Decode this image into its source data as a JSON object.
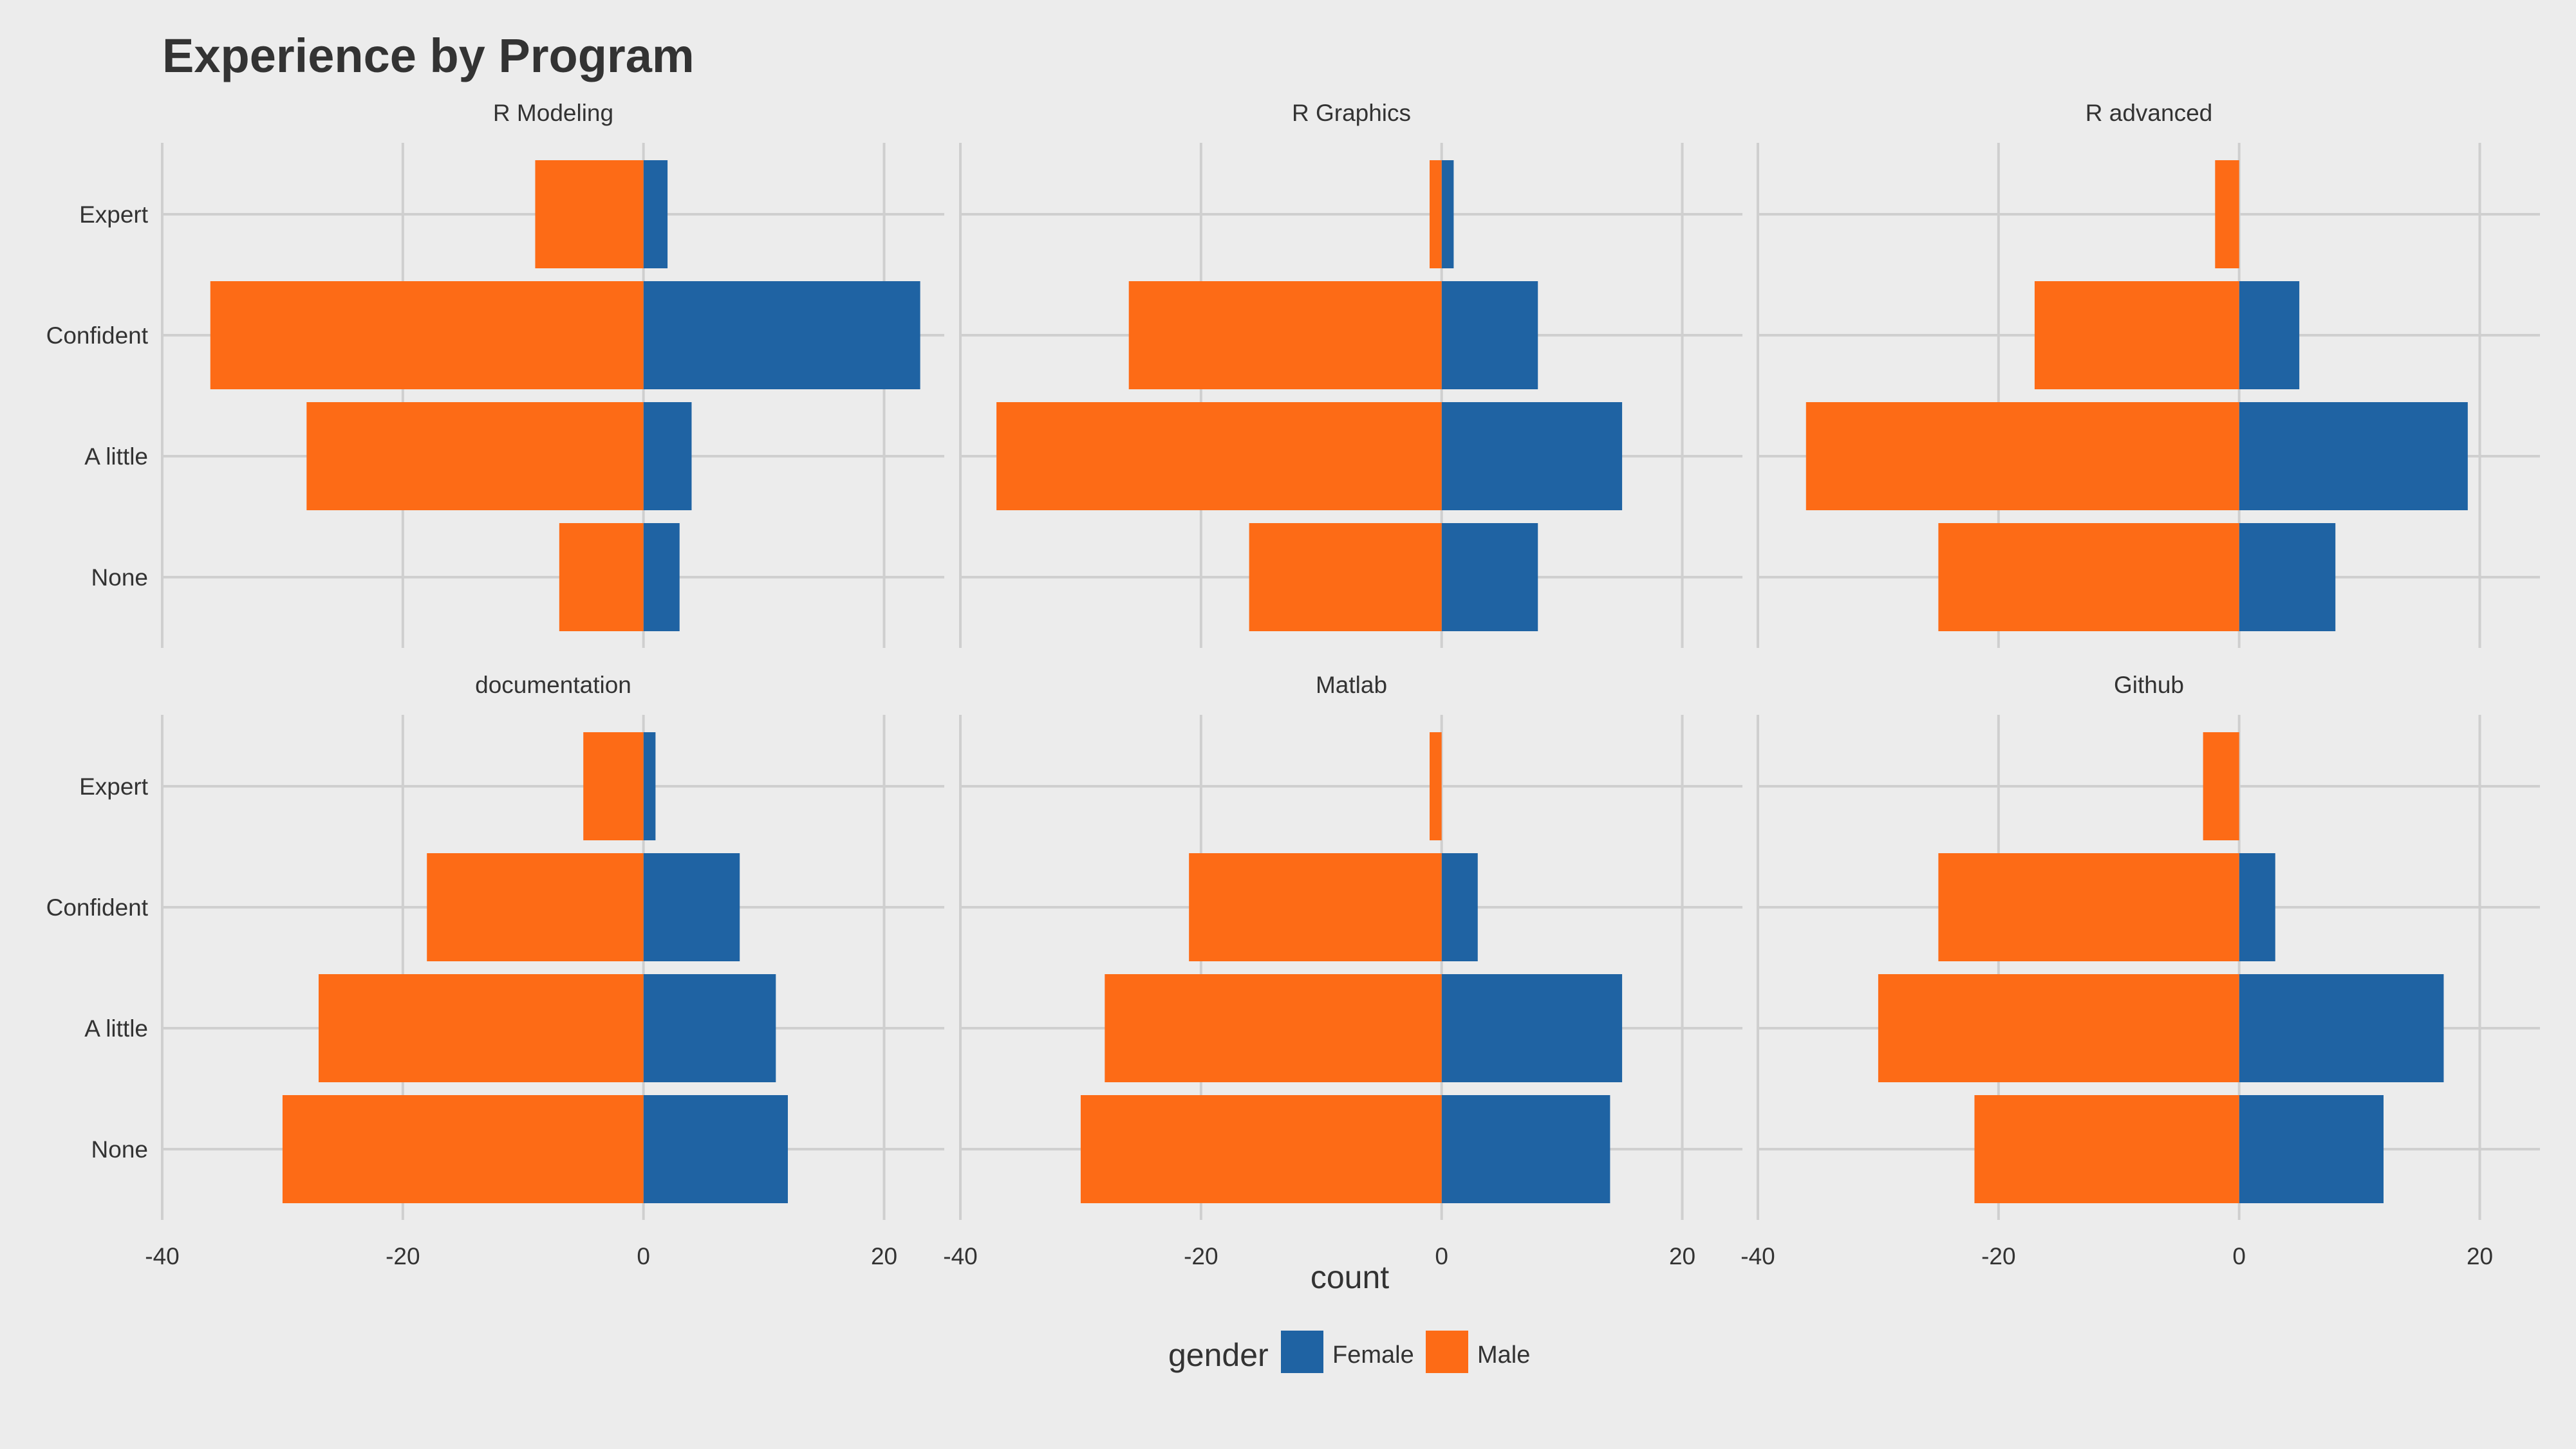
{
  "chart_data": {
    "type": "bar",
    "orientation": "horizontal",
    "title": "Experience by Program",
    "xlabel": "count",
    "ylabel": "",
    "xlim": [
      -40,
      25
    ],
    "x_ticks": [
      "-40",
      "-20",
      "0",
      "20"
    ],
    "categories": [
      "None",
      "A little",
      "Confident",
      "Expert"
    ],
    "grid": true,
    "legend": {
      "title": "gender",
      "position": "bottom",
      "entries": [
        {
          "name": "Female",
          "color": "#1f63a3"
        },
        {
          "name": "Male",
          "color": "#fd6b16"
        }
      ]
    },
    "panels": [
      {
        "title": "R Modeling",
        "series": [
          {
            "name": "Female",
            "values": [
              3,
              4,
              23,
              2
            ]
          },
          {
            "name": "Male",
            "values": [
              -7,
              -28,
              -36,
              -9
            ]
          }
        ]
      },
      {
        "title": "R Graphics",
        "series": [
          {
            "name": "Female",
            "values": [
              8,
              15,
              8,
              1
            ]
          },
          {
            "name": "Male",
            "values": [
              -16,
              -37,
              -26,
              -1
            ]
          }
        ]
      },
      {
        "title": "R advanced",
        "series": [
          {
            "name": "Female",
            "values": [
              8,
              19,
              5,
              0
            ]
          },
          {
            "name": "Male",
            "values": [
              -25,
              -36,
              -17,
              -2
            ]
          }
        ]
      },
      {
        "title": "documentation",
        "series": [
          {
            "name": "Female",
            "values": [
              12,
              11,
              8,
              1
            ]
          },
          {
            "name": "Male",
            "values": [
              -30,
              -27,
              -18,
              -5
            ]
          }
        ]
      },
      {
        "title": "Matlab",
        "series": [
          {
            "name": "Female",
            "values": [
              14,
              15,
              3,
              0
            ]
          },
          {
            "name": "Male",
            "values": [
              -30,
              -28,
              -21,
              -1
            ]
          }
        ]
      },
      {
        "title": "Github",
        "series": [
          {
            "name": "Female",
            "values": [
              12,
              17,
              3,
              0
            ]
          },
          {
            "name": "Male",
            "values": [
              -22,
              -30,
              -25,
              -3
            ]
          }
        ]
      }
    ]
  }
}
